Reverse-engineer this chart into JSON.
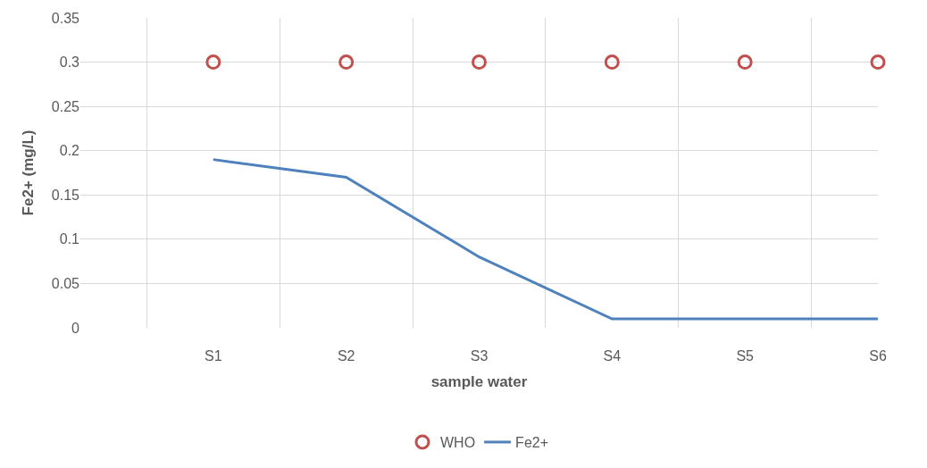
{
  "chart_data": {
    "type": "line",
    "xlabel": "sample water",
    "ylabel": "Fe2+ (mg/L)",
    "categories": [
      null,
      "S1",
      "S2",
      "S3",
      "S4",
      "S5",
      "S6"
    ],
    "series": [
      {
        "name": "WHO",
        "type": "scatter",
        "marker": "circle",
        "color": "#c0504d",
        "values": [
          null,
          0.3,
          0.3,
          0.3,
          0.3,
          0.3,
          0.3
        ]
      },
      {
        "name": "Fe2+",
        "marker": "none",
        "color": "#4f81bd",
        "values": [
          null,
          0.19,
          0.17,
          0.08,
          0.01,
          0.01,
          0.01
        ]
      }
    ],
    "ylim": [
      0,
      0.35
    ],
    "yticks": [
      0,
      0.05,
      0.1,
      0.15,
      0.2,
      0.25,
      0.3,
      0.35
    ],
    "grid": true,
    "legend": "bottom"
  }
}
